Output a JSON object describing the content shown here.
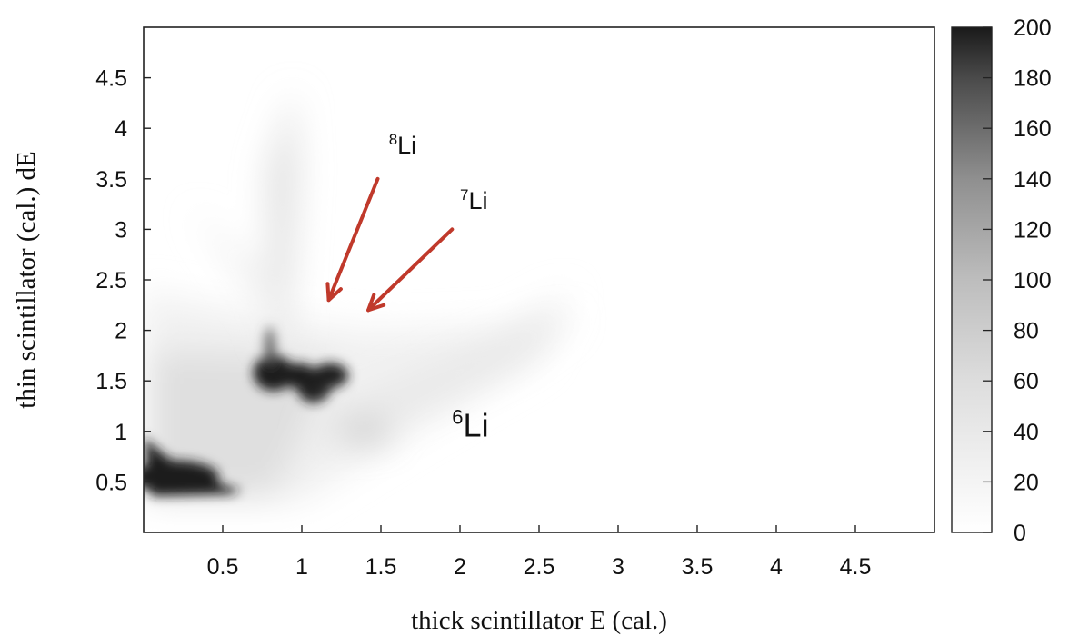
{
  "chart_data": {
    "type": "heatmap",
    "title": "",
    "xlabel": "thick scintillator E (cal.)",
    "ylabel": "thin scintillator (cal.) dE",
    "xlim": [
      0,
      5
    ],
    "ylim": [
      0,
      5
    ],
    "x_ticks": [
      "0.5",
      "1",
      "1.5",
      "2",
      "2.5",
      "3",
      "3.5",
      "4",
      "4.5"
    ],
    "y_ticks": [
      "0.5",
      "1",
      "1.5",
      "2",
      "2.5",
      "3",
      "3.5",
      "4",
      "4.5"
    ],
    "colorbar": {
      "min": 0,
      "max": 200,
      "ticks": [
        "0",
        "20",
        "40",
        "60",
        "80",
        "100",
        "120",
        "140",
        "160",
        "180",
        "200"
      ],
      "low_color": "#ffffff",
      "high_color": "#1a1a1a"
    },
    "grid": false,
    "regions": [
      {
        "name": "low-energy blob",
        "points": [
          [
            0.1,
            0.55
          ],
          [
            0.3,
            0.5
          ],
          [
            0.5,
            0.45
          ],
          [
            0.2,
            0.7
          ]
        ],
        "intensity": 200
      },
      {
        "name": "central blob",
        "points": [
          [
            0.8,
            1.6
          ],
          [
            0.95,
            1.55
          ],
          [
            1.05,
            1.45
          ],
          [
            1.2,
            1.55
          ]
        ],
        "intensity": 200
      },
      {
        "name": "vertical band",
        "points": [
          [
            0.88,
            2.5
          ],
          [
            0.9,
            3.2
          ],
          [
            0.88,
            1.95
          ]
        ],
        "intensity": 25
      },
      {
        "name": "6Li band",
        "points": [
          [
            1.5,
            1.1
          ],
          [
            1.9,
            1.35
          ],
          [
            2.3,
            1.65
          ],
          [
            2.7,
            2.0
          ]
        ],
        "intensity": 20
      }
    ],
    "annotations": [
      {
        "mass": "8",
        "element": "Li",
        "x": 1.55,
        "y": 3.75,
        "arrow_from": [
          1.48,
          3.5
        ],
        "arrow_to": [
          1.17,
          2.3
        ]
      },
      {
        "mass": "7",
        "element": "Li",
        "x": 2.0,
        "y": 3.2,
        "arrow_from": [
          1.95,
          3.0
        ],
        "arrow_to": [
          1.42,
          2.2
        ]
      },
      {
        "mass": "6",
        "element": "Li",
        "x": 1.95,
        "y": 0.95,
        "arrow_from": null,
        "arrow_to": null
      }
    ],
    "arrow_color": "#c0392b"
  }
}
